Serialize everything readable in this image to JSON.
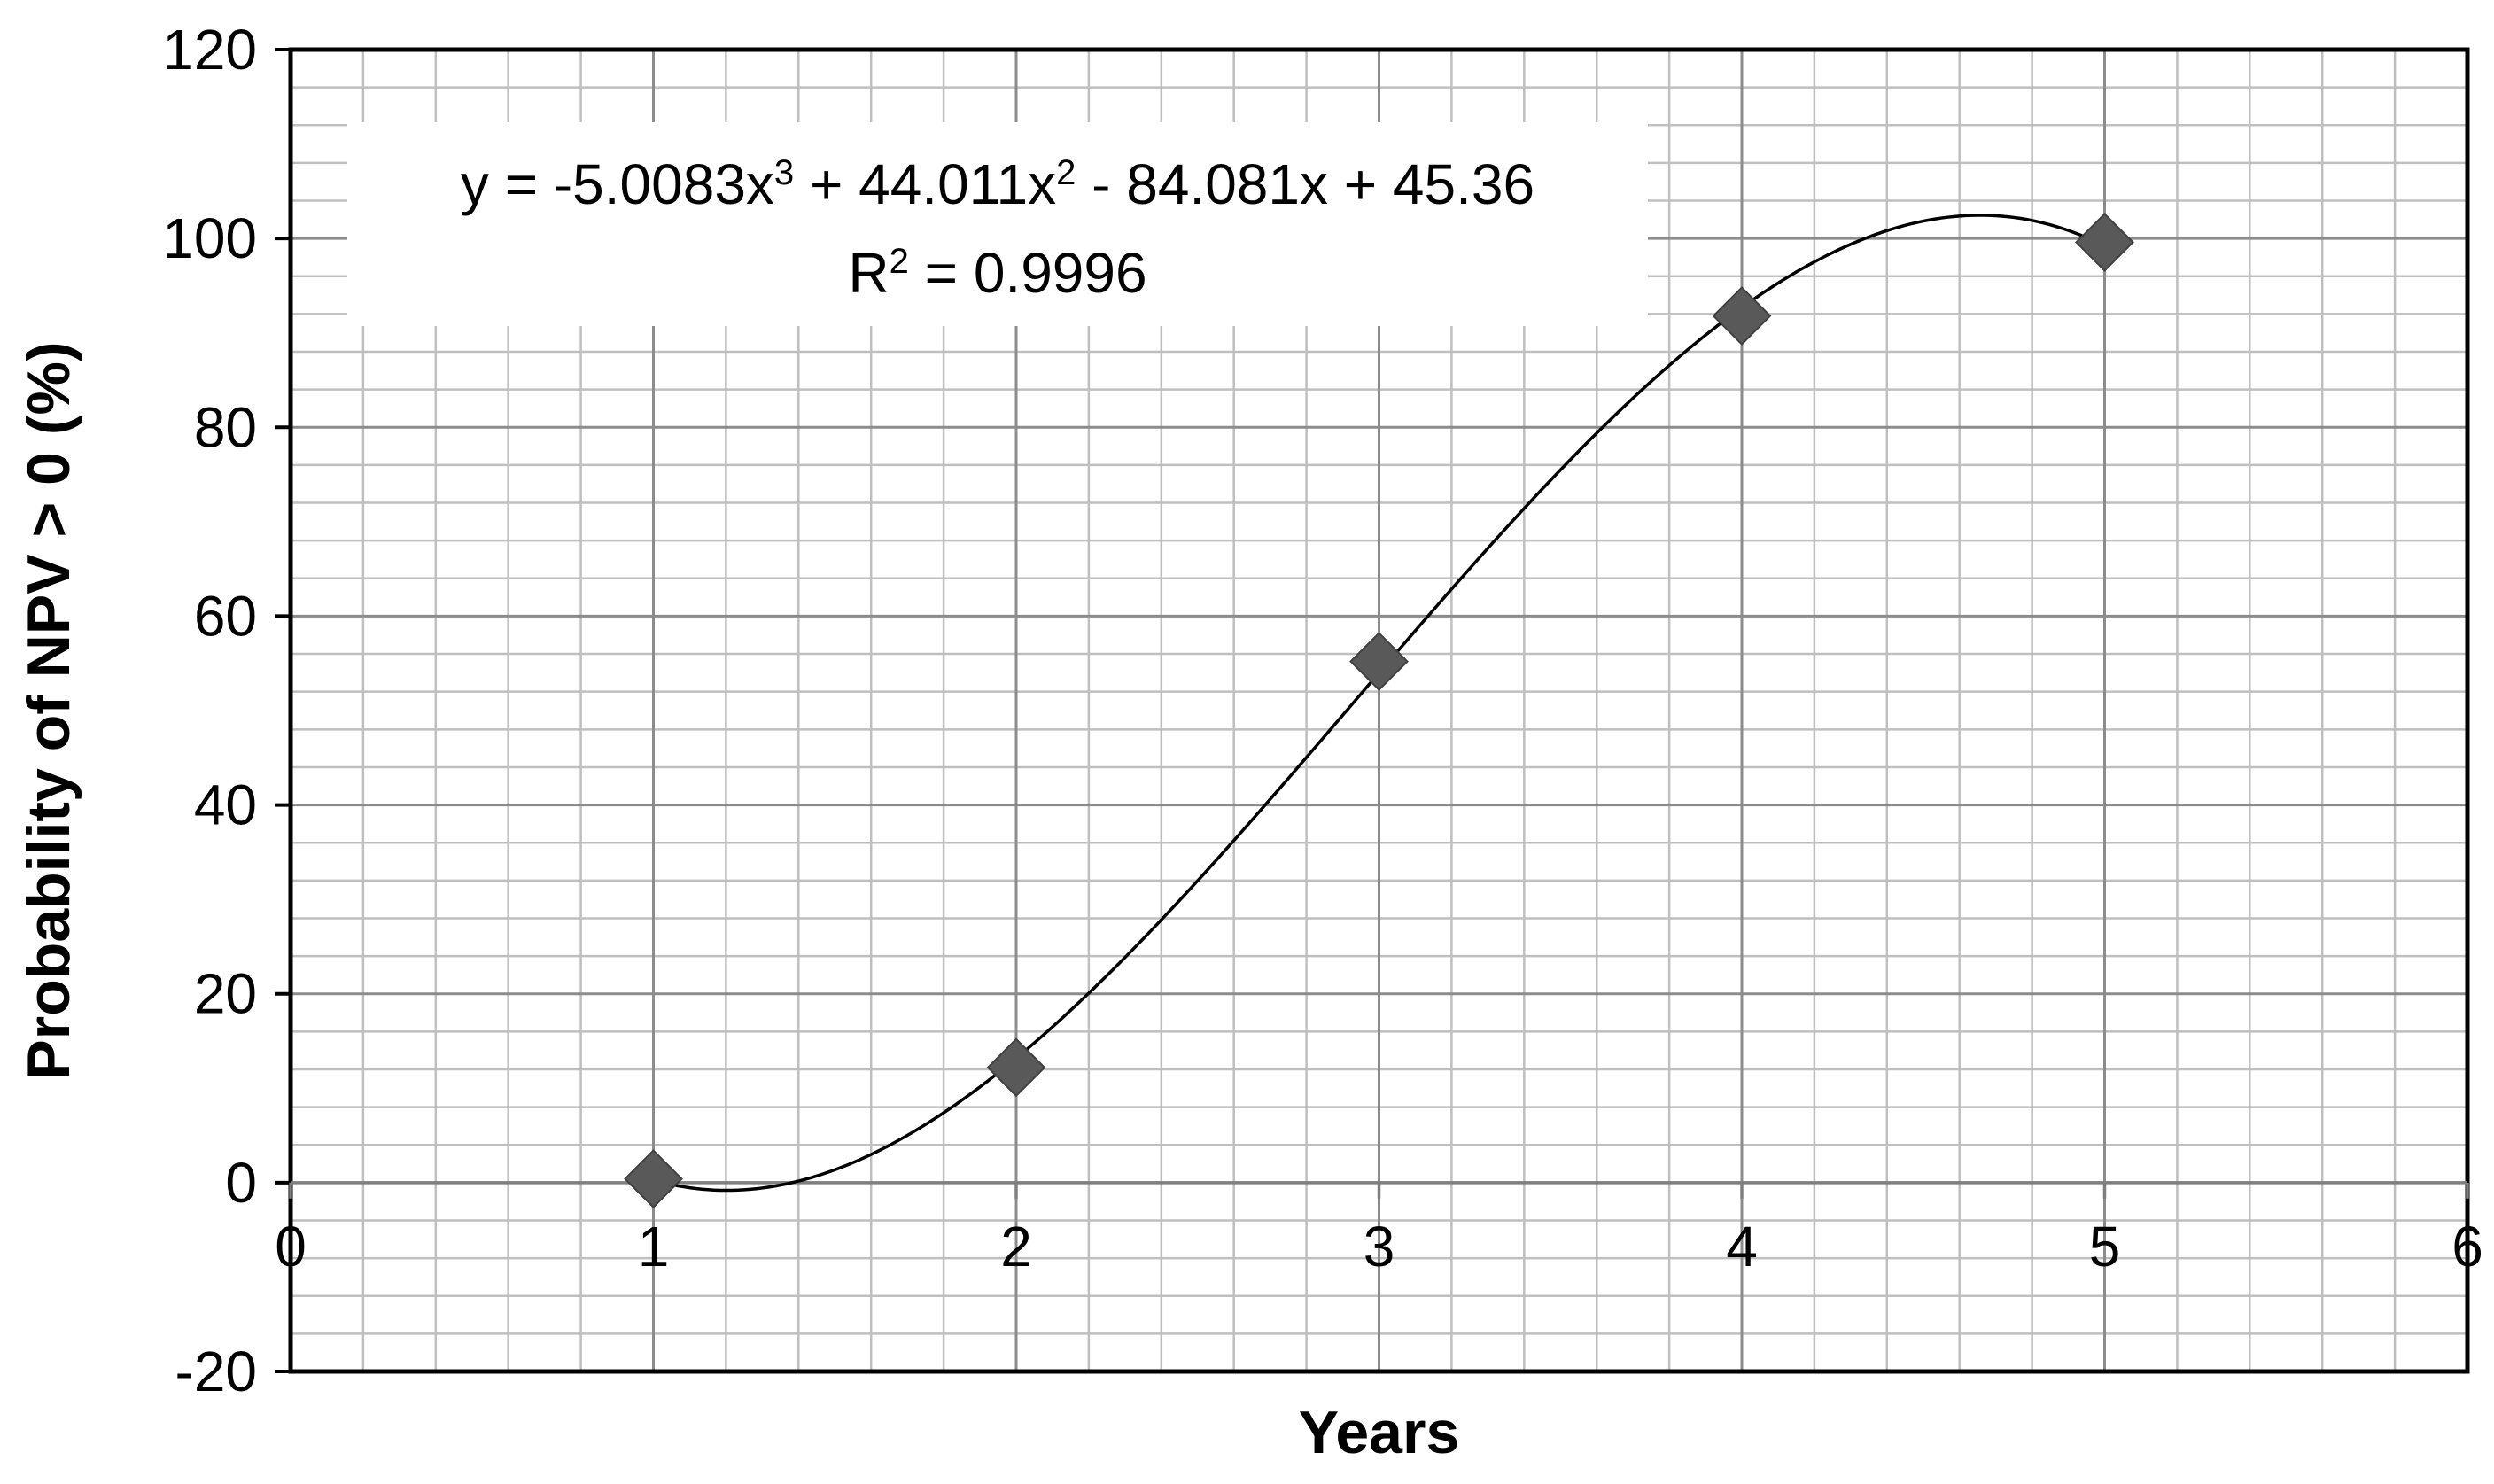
{
  "chart_data": {
    "type": "scatter",
    "title": "",
    "xlabel": "Years",
    "ylabel": "Probability of NPV > 0 (%)",
    "xlim": [
      0,
      6
    ],
    "ylim": [
      -20,
      120
    ],
    "x_ticks": [
      0,
      1,
      2,
      3,
      4,
      5,
      6
    ],
    "y_ticks": [
      -20,
      0,
      20,
      40,
      60,
      80,
      100,
      120
    ],
    "grid": true,
    "legend": "none",
    "marker": "diamond",
    "marker_color": "#595959",
    "series": [
      {
        "x": [
          1,
          2,
          3,
          4,
          5
        ],
        "y": [
          0.4,
          12.2,
          55.2,
          91.8,
          99.6
        ]
      }
    ],
    "trendline": {
      "type": "polynomial",
      "order": 3,
      "coefficients": [
        -5.0083,
        44.011,
        -84.081,
        45.36
      ],
      "x_range": [
        1,
        5
      ],
      "equation_parts": {
        "p1": "y = -5.0083x",
        "sup1": "3",
        "p2": " + 44.011x",
        "sup2": "2",
        "p3": " - 84.081x + 45.36"
      },
      "r2_parts": {
        "p1": "R",
        "sup1": "2",
        "p2": " = 0.9996"
      }
    }
  }
}
